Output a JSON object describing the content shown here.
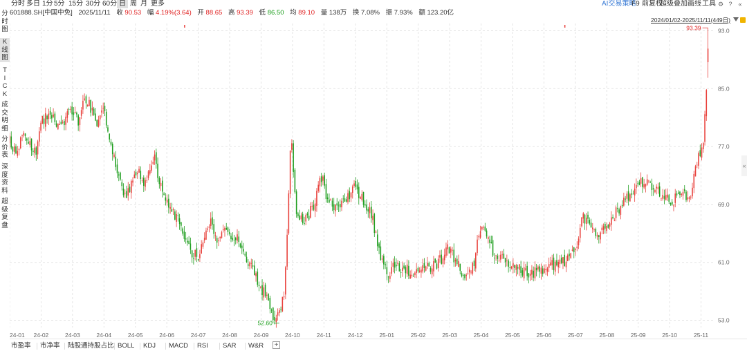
{
  "sidenav": [
    {
      "label": "分时图",
      "chars": [
        "分",
        "时",
        "图"
      ],
      "active": false
    },
    {
      "label": "K线图",
      "chars": [
        "K",
        "线",
        "图"
      ],
      "active": true
    },
    {
      "label": "TICK",
      "chars": [
        "T",
        "I",
        "C",
        "K"
      ],
      "active": false
    },
    {
      "label": "成交明细",
      "chars": [
        "成",
        "交",
        "明",
        "细"
      ],
      "active": false
    },
    {
      "label": "分价表",
      "chars": [
        "分",
        "价",
        "表"
      ],
      "active": false
    },
    {
      "label": "深度资料",
      "chars": [
        "深",
        "度",
        "资",
        "料"
      ],
      "active": false
    },
    {
      "label": "超级复盘",
      "chars": [
        "超",
        "级",
        "复",
        "盘"
      ],
      "active": false
    }
  ],
  "toolbar": {
    "timeframes": [
      "分时",
      "多日",
      "1分",
      "5分",
      "15分",
      "30分",
      "60分",
      "日",
      "周",
      "月",
      "更多"
    ],
    "active_timeframe": "日",
    "right_items": [
      "AI交易策略",
      "F9",
      "前复权",
      "超级叠加",
      "画线",
      "工具"
    ]
  },
  "quote": {
    "code_name": "601888.SH[中国中免]",
    "date": "2025/11/11",
    "close_label": "收",
    "close": "90.53",
    "change_label": "幅",
    "change": "4.19%(3.64)",
    "open_label": "开",
    "open": "88.65",
    "high_label": "高",
    "high": "93.39",
    "low_label": "低",
    "low": "86.50",
    "avg_label": "均",
    "avg": "89.10",
    "volume_label": "量",
    "volume": "138万",
    "turnover_label": "换",
    "turnover": "7.08%",
    "amplitude_label": "振",
    "amplitude": "7.93%",
    "amount_label": "额",
    "amount": "123.20亿"
  },
  "range": {
    "text": "2024/01/02-2025/11/11(449日)"
  },
  "right_handle": "«",
  "chart_data": {
    "type": "candlestick",
    "y_ticks": [
      "93.0",
      "85.0",
      "77.0",
      "69.0",
      "61.0",
      "53.0"
    ],
    "y_tick_values": [
      93,
      85,
      77,
      69,
      61,
      53
    ],
    "ylim": [
      52.0,
      94.0
    ],
    "x_ticks": [
      "24-01",
      "24-02",
      "24-03",
      "24-04",
      "24-05",
      "24-06",
      "24-07",
      "24-08",
      "24-09",
      "24-10",
      "24-11",
      "24-12",
      "25-01",
      "25-02",
      "25-03",
      "25-04",
      "25-05",
      "25-06",
      "25-07",
      "25-08",
      "25-09",
      "25-10",
      "25-11"
    ],
    "high_label": "93.39",
    "low_label": "52.60",
    "colors": {
      "up": "#e8403b",
      "down": "#1f9e1f",
      "grid": "#e4e4e4",
      "axis_text": "#666666",
      "hl_up": "#e02020",
      "hl_dn": "#1a9d1a"
    },
    "grid": true,
    "approx_close_path": [
      {
        "t": 0.0,
        "p": 77.8
      },
      {
        "t": 0.2,
        "p": 76.0
      },
      {
        "t": 0.45,
        "p": 79.5
      },
      {
        "t": 0.6,
        "p": 78.0
      },
      {
        "t": 0.85,
        "p": 76.0
      },
      {
        "t": 1.0,
        "p": 80.5
      },
      {
        "t": 1.3,
        "p": 81.5
      },
      {
        "t": 1.6,
        "p": 79.5
      },
      {
        "t": 1.95,
        "p": 82.5
      },
      {
        "t": 2.2,
        "p": 80.5
      },
      {
        "t": 2.35,
        "p": 84.0
      },
      {
        "t": 2.5,
        "p": 83.0
      },
      {
        "t": 2.8,
        "p": 80.0
      },
      {
        "t": 3.0,
        "p": 82.5
      },
      {
        "t": 3.25,
        "p": 76.5
      },
      {
        "t": 3.45,
        "p": 73.0
      },
      {
        "t": 3.7,
        "p": 70.0
      },
      {
        "t": 3.95,
        "p": 72.5
      },
      {
        "t": 4.1,
        "p": 73.5
      },
      {
        "t": 4.3,
        "p": 72.0
      },
      {
        "t": 4.6,
        "p": 75.5
      },
      {
        "t": 4.8,
        "p": 71.5
      },
      {
        "t": 5.2,
        "p": 68.0
      },
      {
        "t": 5.45,
        "p": 66.5
      },
      {
        "t": 5.7,
        "p": 63.0
      },
      {
        "t": 6.0,
        "p": 61.5
      },
      {
        "t": 6.2,
        "p": 64.5
      },
      {
        "t": 6.4,
        "p": 66.5
      },
      {
        "t": 6.6,
        "p": 64.0
      },
      {
        "t": 6.85,
        "p": 65.5
      },
      {
        "t": 7.2,
        "p": 64.5
      },
      {
        "t": 7.5,
        "p": 62.0
      },
      {
        "t": 7.8,
        "p": 59.5
      },
      {
        "t": 8.05,
        "p": 57.0
      },
      {
        "t": 8.25,
        "p": 55.5
      },
      {
        "t": 8.45,
        "p": 53.0
      },
      {
        "t": 8.62,
        "p": 54.0
      },
      {
        "t": 8.75,
        "p": 57.5
      },
      {
        "t": 8.85,
        "p": 66.5
      },
      {
        "t": 8.95,
        "p": 79.5
      },
      {
        "t": 9.1,
        "p": 68.5
      },
      {
        "t": 9.3,
        "p": 66.5
      },
      {
        "t": 9.5,
        "p": 67.5
      },
      {
        "t": 9.7,
        "p": 69.0
      },
      {
        "t": 9.88,
        "p": 73.5
      },
      {
        "t": 10.1,
        "p": 70.0
      },
      {
        "t": 10.4,
        "p": 68.0
      },
      {
        "t": 10.7,
        "p": 69.5
      },
      {
        "t": 10.95,
        "p": 71.5
      },
      {
        "t": 11.2,
        "p": 70.0
      },
      {
        "t": 11.5,
        "p": 68.0
      },
      {
        "t": 11.75,
        "p": 62.5
      },
      {
        "t": 12.0,
        "p": 59.5
      },
      {
        "t": 12.3,
        "p": 60.5
      },
      {
        "t": 12.6,
        "p": 60.0
      },
      {
        "t": 12.9,
        "p": 59.5
      },
      {
        "t": 13.2,
        "p": 60.0
      },
      {
        "t": 13.5,
        "p": 60.5
      },
      {
        "t": 13.75,
        "p": 61.5
      },
      {
        "t": 13.95,
        "p": 63.0
      },
      {
        "t": 14.2,
        "p": 61.0
      },
      {
        "t": 14.55,
        "p": 58.5
      },
      {
        "t": 14.8,
        "p": 61.5
      },
      {
        "t": 14.95,
        "p": 66.0
      },
      {
        "t": 15.1,
        "p": 65.5
      },
      {
        "t": 15.4,
        "p": 62.5
      },
      {
        "t": 15.75,
        "p": 61.0
      },
      {
        "t": 16.0,
        "p": 60.5
      },
      {
        "t": 16.3,
        "p": 60.0
      },
      {
        "t": 16.6,
        "p": 59.5
      },
      {
        "t": 16.9,
        "p": 60.0
      },
      {
        "t": 17.2,
        "p": 60.5
      },
      {
        "t": 17.5,
        "p": 61.0
      },
      {
        "t": 17.8,
        "p": 61.5
      },
      {
        "t": 18.05,
        "p": 63.5
      },
      {
        "t": 18.25,
        "p": 67.5
      },
      {
        "t": 18.45,
        "p": 66.0
      },
      {
        "t": 18.8,
        "p": 65.0
      },
      {
        "t": 19.1,
        "p": 66.5
      },
      {
        "t": 19.4,
        "p": 68.5
      },
      {
        "t": 19.7,
        "p": 70.0
      },
      {
        "t": 20.0,
        "p": 71.5
      },
      {
        "t": 20.25,
        "p": 72.5
      },
      {
        "t": 20.5,
        "p": 71.0
      },
      {
        "t": 20.8,
        "p": 70.5
      },
      {
        "t": 21.1,
        "p": 69.5
      },
      {
        "t": 21.4,
        "p": 70.5
      },
      {
        "t": 21.7,
        "p": 70.0
      },
      {
        "t": 21.85,
        "p": 75.0
      },
      {
        "t": 22.0,
        "p": 76.0
      },
      {
        "t": 22.1,
        "p": 79.0
      },
      {
        "t": 22.18,
        "p": 86.5
      },
      {
        "t": 22.22,
        "p": 90.53
      }
    ]
  },
  "tabs": [
    "市盈率",
    "市净率",
    "陆股通持股占比",
    "BOLL",
    "KDJ",
    "MACD",
    "RSI",
    "SAR",
    "W&R"
  ]
}
